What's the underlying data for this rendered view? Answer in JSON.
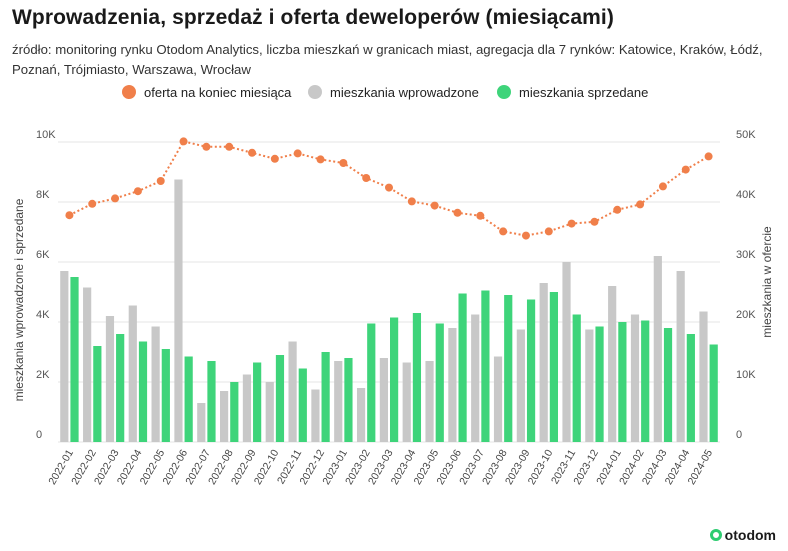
{
  "title": "Wprowadzenia, sprzedaż i oferta deweloperów (miesiącami)",
  "subtitle": "źródło: monitoring rynku Otodom Analytics, liczba mieszkań w granicach miast, agregacja dla 7 rynków: Katowice, Kraków, Łódź, Poznań, Trójmiasto, Warszawa, Wrocław",
  "logo_text": "otodom",
  "colors": {
    "offer": "#f07f4a",
    "introduced": "#c8c8c8",
    "sold": "#3ed47a",
    "grid": "#e6e6e6"
  },
  "chart_data": {
    "type": "bar",
    "categories": [
      "2022-01",
      "2022-02",
      "2022-03",
      "2022-04",
      "2022-05",
      "2022-06",
      "2022-07",
      "2022-08",
      "2022-09",
      "2022-10",
      "2022-11",
      "2022-12",
      "2023-01",
      "2023-02",
      "2023-03",
      "2023-04",
      "2023-05",
      "2023-06",
      "2023-07",
      "2023-08",
      "2023-09",
      "2023-10",
      "2023-11",
      "2023-12",
      "2024-01",
      "2024-02",
      "2024-03",
      "2024-04",
      "2024-05"
    ],
    "series": [
      {
        "name": "oferta na koniec miesiąca",
        "type": "line",
        "axis": "right",
        "values": [
          37800,
          39700,
          40600,
          41800,
          43500,
          50100,
          49200,
          49200,
          48200,
          47200,
          48100,
          47100,
          46500,
          44000,
          42400,
          40100,
          39400,
          38200,
          37700,
          35100,
          34400,
          35100,
          36400,
          36700,
          38700,
          39600,
          42600,
          45400,
          47600
        ]
      },
      {
        "name": "mieszkania wprowadzone",
        "type": "bar",
        "axis": "left",
        "values": [
          5700,
          5150,
          4200,
          4550,
          3850,
          8750,
          1300,
          1700,
          2250,
          2000,
          3350,
          1750,
          2700,
          1800,
          2800,
          2650,
          2700,
          3800,
          4250,
          2850,
          3750,
          5300,
          6000,
          3750,
          5200,
          4250,
          6200,
          5700,
          4350
        ]
      },
      {
        "name": "mieszkania sprzedane",
        "type": "bar",
        "axis": "left",
        "values": [
          5500,
          3200,
          3600,
          3350,
          3100,
          2850,
          2700,
          2000,
          2650,
          2900,
          2450,
          3000,
          2800,
          3950,
          4150,
          4300,
          3950,
          4950,
          5050,
          4900,
          4750,
          5000,
          4250,
          3850,
          4000,
          4050,
          3800,
          3600,
          3250
        ]
      }
    ],
    "ylabel": "mieszkania wprowadzone i sprzedane",
    "y2label": "mieszkania w ofercie",
    "ylim": [
      0,
      10000
    ],
    "y2lim": [
      0,
      50000
    ],
    "yticks": [
      0,
      2000,
      4000,
      6000,
      8000,
      10000
    ],
    "yticklabels": [
      "0",
      "2K",
      "4K",
      "6K",
      "8K",
      "10K"
    ],
    "y2ticks": [
      0,
      10000,
      20000,
      30000,
      40000,
      50000
    ],
    "y2ticklabels": [
      "0",
      "10K",
      "20K",
      "30K",
      "40K",
      "50K"
    ],
    "grid": true,
    "legend_position": "top"
  }
}
